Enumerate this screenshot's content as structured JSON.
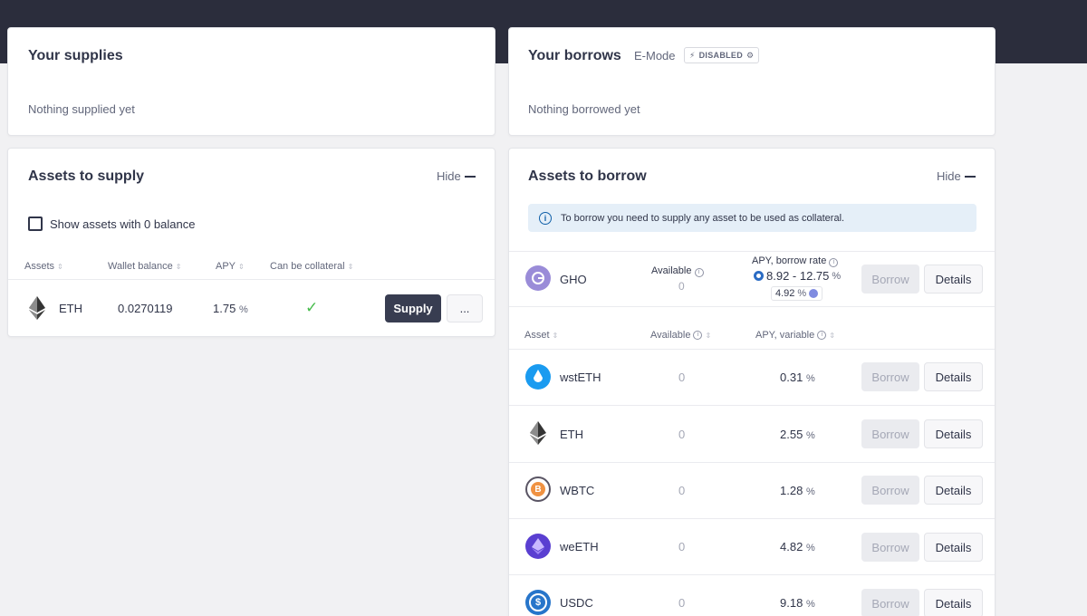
{
  "supplies": {
    "title": "Your supplies",
    "empty": "Nothing supplied yet"
  },
  "borrows": {
    "title": "Your borrows",
    "emode_label": "E-Mode",
    "emode_status": "DISABLED",
    "empty": "Nothing borrowed yet"
  },
  "assets_to_supply": {
    "title": "Assets to supply",
    "hide_label": "Hide",
    "show_zero_label": "Show assets with 0 balance",
    "columns": [
      "Assets",
      "Wallet balance",
      "APY",
      "Can be collateral"
    ],
    "rows": [
      {
        "symbol": "ETH",
        "wallet_balance": "0.0270119",
        "apy": "1.75",
        "apy_unit": "%",
        "collateral": "✓",
        "supply_label": "Supply",
        "more_label": "..."
      }
    ]
  },
  "assets_to_borrow": {
    "title": "Assets to borrow",
    "hide_label": "Hide",
    "notice": "To borrow you need to supply any asset to be used as collateral.",
    "gho": {
      "symbol": "GHO",
      "available_label": "Available",
      "available": "0",
      "rate_label": "APY, borrow rate",
      "rate_range": "8.92 - 12.75",
      "rate_unit": "%",
      "discount": "4.92",
      "discount_unit": "%",
      "borrow_label": "Borrow",
      "details_label": "Details"
    },
    "columns": [
      "Asset",
      "Available",
      "APY, variable"
    ],
    "rows": [
      {
        "symbol": "wstETH",
        "available": "0",
        "apy": "0.31",
        "unit": "%",
        "borrow_label": "Borrow",
        "details_label": "Details",
        "icon_color": "#1a9bf0"
      },
      {
        "symbol": "ETH",
        "available": "0",
        "apy": "2.55",
        "unit": "%",
        "borrow_label": "Borrow",
        "details_label": "Details",
        "icon_color": "#303549"
      },
      {
        "symbol": "WBTC",
        "available": "0",
        "apy": "1.28",
        "unit": "%",
        "borrow_label": "Borrow",
        "details_label": "Details",
        "icon_color": "#f09242"
      },
      {
        "symbol": "weETH",
        "available": "0",
        "apy": "4.82",
        "unit": "%",
        "borrow_label": "Borrow",
        "details_label": "Details",
        "icon_color": "#6c4cd8"
      },
      {
        "symbol": "USDC",
        "available": "0",
        "apy": "9.18",
        "unit": "%",
        "borrow_label": "Borrow",
        "details_label": "Details",
        "icon_color": "#2775ca"
      }
    ]
  }
}
